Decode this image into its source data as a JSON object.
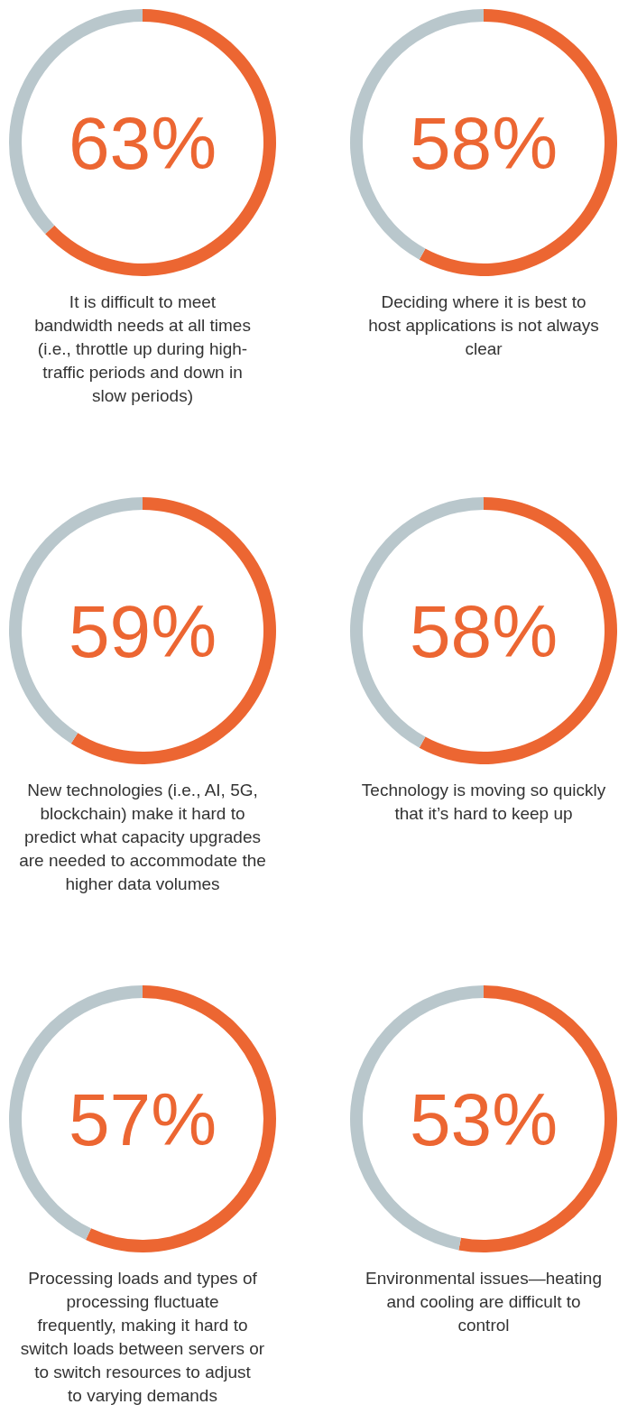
{
  "chart_data": [
    {
      "type": "donut",
      "title": "It is difficult to meet bandwidth needs at all times (i.e., throttle up during high-traffic periods and down in slow periods)",
      "categories": [
        null,
        null
      ],
      "values": [
        63,
        37
      ],
      "colors": [
        "#ec6632",
        "#b9c7cc"
      ],
      "annotations": [
        "63%"
      ]
    },
    {
      "type": "donut",
      "title": "Deciding where it is best to host applications is not always clear",
      "categories": [
        null,
        null
      ],
      "values": [
        58,
        42
      ],
      "colors": [
        "#ec6632",
        "#b9c7cc"
      ],
      "annotations": [
        "58%"
      ]
    },
    {
      "type": "donut",
      "title": "New technologies (i.e., AI, 5G, blockchain) make it hard to predict what capacity upgrades are needed to accommodate the higher data volumes",
      "categories": [
        null,
        null
      ],
      "values": [
        59,
        41
      ],
      "colors": [
        "#ec6632",
        "#b9c7cc"
      ],
      "annotations": [
        "59%"
      ]
    },
    {
      "type": "donut",
      "title": "Technology is moving so quickly that it’s hard to keep up",
      "categories": [
        null,
        null
      ],
      "values": [
        58,
        42
      ],
      "colors": [
        "#ec6632",
        "#b9c7cc"
      ],
      "annotations": [
        "58%"
      ]
    },
    {
      "type": "donut",
      "title": "Processing loads and types of processing fluctuate frequently, making it hard to switch loads between servers or to switch resources to adjust to varying demands",
      "categories": [
        null,
        null
      ],
      "values": [
        57,
        43
      ],
      "colors": [
        "#ec6632",
        "#b9c7cc"
      ],
      "annotations": [
        "57%"
      ]
    },
    {
      "type": "donut",
      "title": "Environmental issues—heating and cooling are difficult to control",
      "categories": [
        null,
        null
      ],
      "values": [
        53,
        47
      ],
      "colors": [
        "#ec6632",
        "#b9c7cc"
      ],
      "annotations": [
        "53%"
      ]
    }
  ]
}
